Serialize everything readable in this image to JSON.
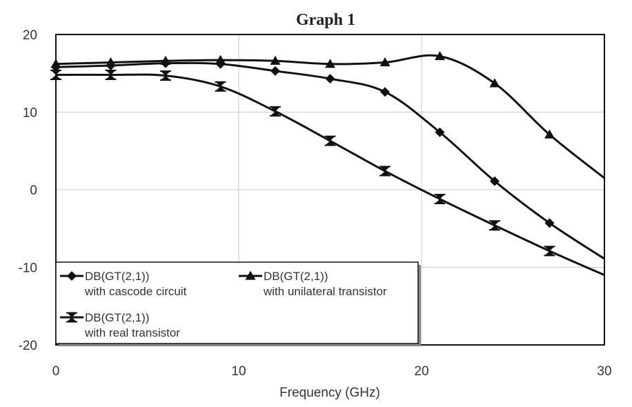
{
  "chart_data": {
    "type": "line",
    "title": "Graph 1",
    "xlabel": "Frequency (GHz)",
    "ylabel": "",
    "xlim": [
      0,
      30
    ],
    "ylim": [
      -20,
      20
    ],
    "x_ticks": [
      "0",
      "10",
      "20",
      "30"
    ],
    "y_ticks": [
      "20",
      "10",
      "0",
      "-10",
      "-20"
    ],
    "grid": true,
    "legend_position": "bottom-left",
    "series": [
      {
        "name": "DB(GT(2,1))",
        "subtitle": "with cascode circuit",
        "marker": "diamond",
        "x": [
          0,
          3,
          6,
          9,
          12,
          15,
          18,
          21,
          24,
          27,
          30
        ],
        "y": [
          15.8,
          16.0,
          16.3,
          16.2,
          15.3,
          14.3,
          12.6,
          7.4,
          1.1,
          -4.3,
          -8.9
        ],
        "markers_at": [
          0,
          3,
          6,
          9,
          12,
          15,
          18,
          21,
          24,
          27
        ]
      },
      {
        "name": "DB(GT(2,1))",
        "subtitle": "with unilateral transistor",
        "marker": "triangle",
        "x": [
          0,
          3,
          6,
          9,
          12,
          15,
          18,
          21,
          24,
          27,
          30
        ],
        "y": [
          16.2,
          16.4,
          16.6,
          16.7,
          16.6,
          16.2,
          16.4,
          17.2,
          13.7,
          7.1,
          1.5
        ],
        "markers_at": [
          0,
          3,
          6,
          9,
          12,
          15,
          18,
          21,
          24,
          27
        ]
      },
      {
        "name": "DB(GT(2,1))",
        "subtitle": "with real transistor",
        "marker": "hourglass",
        "x": [
          0,
          3,
          6,
          9,
          12,
          15,
          18,
          21,
          24,
          27,
          30
        ],
        "y": [
          14.8,
          14.8,
          14.7,
          13.3,
          10.1,
          6.3,
          2.4,
          -1.2,
          -4.6,
          -7.9,
          -11.0
        ],
        "markers_at": [
          0,
          3,
          6,
          9,
          12,
          15,
          18,
          21,
          24,
          27
        ]
      }
    ]
  }
}
